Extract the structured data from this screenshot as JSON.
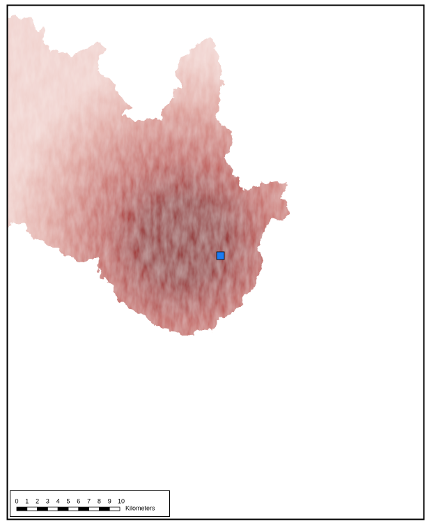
{
  "scale_bar": {
    "ticks": [
      0,
      1,
      2,
      3,
      4,
      5,
      6,
      7,
      8,
      9,
      10
    ],
    "unit": "Kilometers"
  }
}
